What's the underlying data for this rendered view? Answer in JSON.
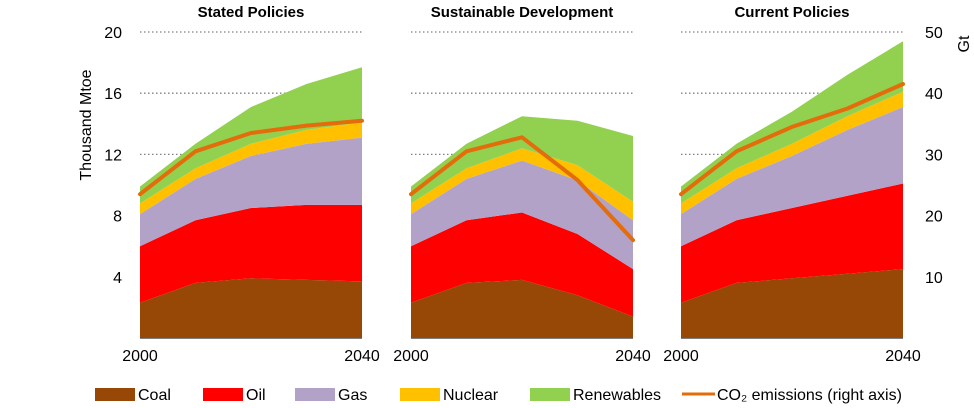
{
  "chart_data": {
    "type": "area",
    "years": [
      2000,
      2010,
      2020,
      2030,
      2040
    ],
    "x_tick_labels": [
      "2000",
      "2040"
    ],
    "y_left": {
      "label": "Thousand Mtoe",
      "range": [
        0,
        20
      ],
      "ticks": [
        4,
        8,
        12,
        16,
        20
      ]
    },
    "y_right": {
      "label": "Gt",
      "range": [
        0,
        50
      ],
      "ticks": [
        10,
        20,
        30,
        40,
        50
      ]
    },
    "grid": "dotted horizontal lines at 12, 16, 20",
    "stack_order": [
      "Coal",
      "Oil",
      "Gas",
      "Nuclear",
      "Renewables"
    ],
    "colors": {
      "Coal": "#974806",
      "Oil": "#ff0000",
      "Gas": "#b3a2c7",
      "Nuclear": "#ffc000",
      "Renewables": "#92d050",
      "CO2": "#e46c0a"
    },
    "legend": {
      "position": "bottom",
      "items": [
        {
          "key": "Coal",
          "label": "Coal"
        },
        {
          "key": "Oil",
          "label": "Oil"
        },
        {
          "key": "Gas",
          "label": "Gas"
        },
        {
          "key": "Nuclear",
          "label": "Nuclear"
        },
        {
          "key": "Renewables",
          "label": "Renewables"
        },
        {
          "key": "CO2",
          "label": "CO₂ emissions (right axis)"
        }
      ]
    },
    "panels": [
      {
        "title": "Stated Policies",
        "series": {
          "Coal": [
            2.3,
            3.6,
            3.9,
            3.8,
            3.7
          ],
          "Oil": [
            3.7,
            4.1,
            4.6,
            4.9,
            5.0
          ],
          "Gas": [
            2.1,
            2.7,
            3.4,
            4.0,
            4.4
          ],
          "Nuclear": [
            0.7,
            0.7,
            0.8,
            0.9,
            1.0
          ],
          "Renewables": [
            1.1,
            1.6,
            2.4,
            3.0,
            3.6
          ]
        },
        "co2": [
          23.5,
          30.5,
          33.5,
          34.7,
          35.5
        ]
      },
      {
        "title": "Sustainable Development",
        "series": {
          "Coal": [
            2.3,
            3.6,
            3.8,
            2.8,
            1.4
          ],
          "Oil": [
            3.7,
            4.1,
            4.4,
            4.0,
            3.1
          ],
          "Gas": [
            2.1,
            2.7,
            3.4,
            3.5,
            3.2
          ],
          "Nuclear": [
            0.7,
            0.7,
            0.8,
            1.0,
            1.2
          ],
          "Renewables": [
            1.1,
            1.6,
            2.1,
            2.9,
            4.3
          ]
        },
        "co2": [
          23.5,
          30.5,
          32.8,
          25.8,
          16.0
        ]
      },
      {
        "title": "Current Policies",
        "series": {
          "Coal": [
            2.3,
            3.6,
            3.9,
            4.2,
            4.5
          ],
          "Oil": [
            3.7,
            4.1,
            4.6,
            5.1,
            5.6
          ],
          "Gas": [
            2.1,
            2.7,
            3.4,
            4.3,
            5.0
          ],
          "Nuclear": [
            0.7,
            0.7,
            0.8,
            0.9,
            1.0
          ],
          "Renewables": [
            1.1,
            1.6,
            2.1,
            2.7,
            3.3
          ]
        },
        "co2": [
          23.5,
          30.5,
          34.5,
          37.5,
          41.5
        ]
      }
    ]
  }
}
